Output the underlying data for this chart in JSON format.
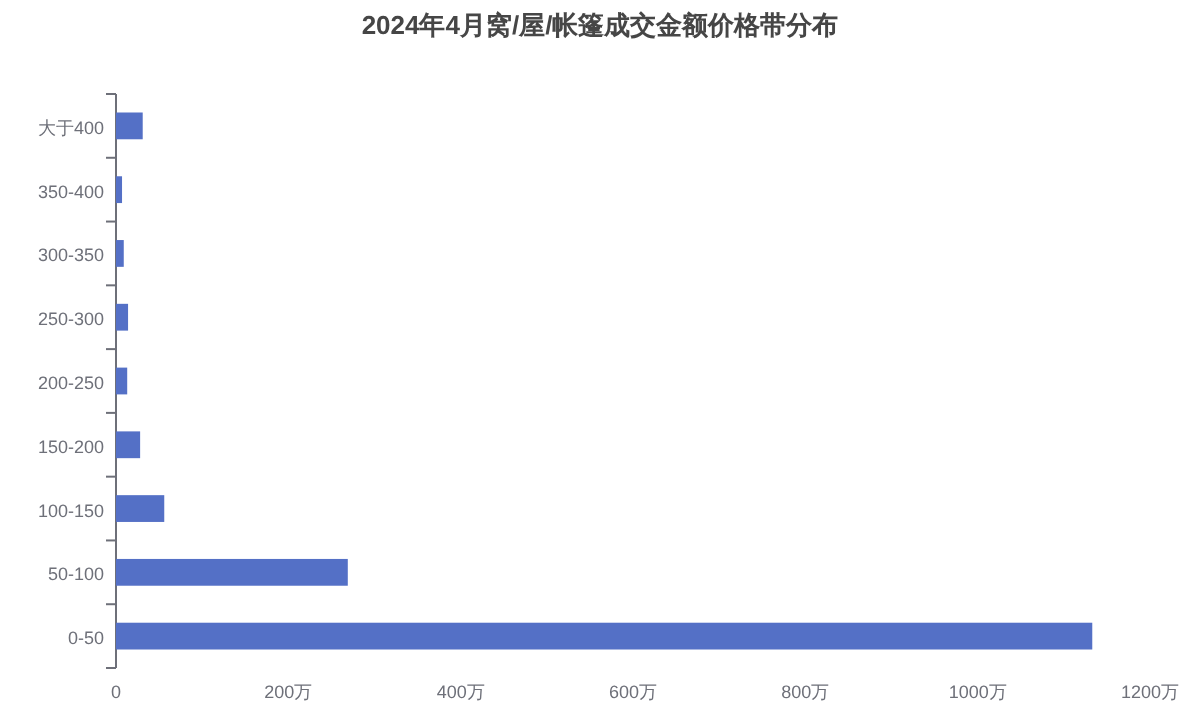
{
  "chart_data": {
    "type": "bar",
    "orientation": "horizontal",
    "title": "2024年4月窝/屋/帐篷成交金额价格带分布",
    "categories": [
      "大于400",
      "350-400",
      "300-350",
      "250-300",
      "200-250",
      "150-200",
      "100-150",
      "50-100",
      "0-50"
    ],
    "values": [
      31,
      7,
      9,
      14,
      13,
      28,
      56,
      269,
      1133
    ],
    "color": "#5470c6",
    "xlim": [
      0,
      1200
    ],
    "xticks": [
      0,
      {
        "value": 200,
        "label": "200万"
      },
      {
        "value": 400,
        "label": "400万"
      },
      {
        "value": 600,
        "label": "600万"
      },
      {
        "value": 800,
        "label": "800万"
      },
      {
        "value": 1000,
        "label": "1000万"
      },
      {
        "value": 1200,
        "label": "1200万"
      }
    ]
  }
}
